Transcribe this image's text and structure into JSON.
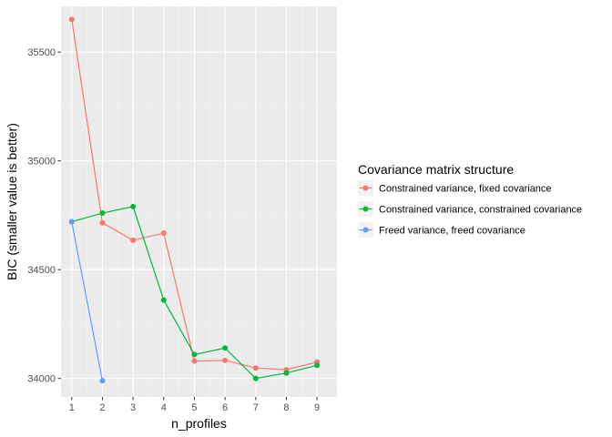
{
  "chart_data": {
    "type": "line",
    "xlabel": "n_profiles",
    "ylabel": "BIC (smaller value is better)",
    "xlim": [
      0.65,
      9.65
    ],
    "ylim": [
      33915,
      35710
    ],
    "x_ticks": [
      1,
      2,
      3,
      4,
      5,
      6,
      7,
      8,
      9
    ],
    "y_ticks": [
      34000,
      34500,
      35000,
      35500
    ],
    "y_minor_ticks": [
      34250,
      34750,
      35250
    ],
    "x_minor_ticks": [
      1.5,
      2.5,
      3.5,
      4.5,
      5.5,
      6.5,
      7.5,
      8.5
    ],
    "grid": true,
    "legend": {
      "title": "Covariance matrix structure",
      "position": "right"
    },
    "series": [
      {
        "name": "Constrained variance, fixed covariance",
        "color": "#F8766D",
        "x": [
          1,
          2,
          3,
          4,
          5,
          6,
          7,
          8,
          9
        ],
        "values": [
          35650,
          34715,
          34635,
          34668,
          34080,
          34083,
          34048,
          34040,
          34075
        ]
      },
      {
        "name": "Constrained variance, constrained covariance",
        "color": "#00BA38",
        "x": [
          1,
          2,
          3,
          4,
          5,
          6,
          7,
          8,
          9
        ],
        "values": [
          34720,
          34760,
          34790,
          34360,
          34110,
          34140,
          34000,
          34025,
          34060
        ]
      },
      {
        "name": "Freed variance, freed covariance",
        "color": "#619CFF",
        "x": [
          1,
          2
        ],
        "values": [
          34720,
          33990
        ]
      }
    ]
  }
}
